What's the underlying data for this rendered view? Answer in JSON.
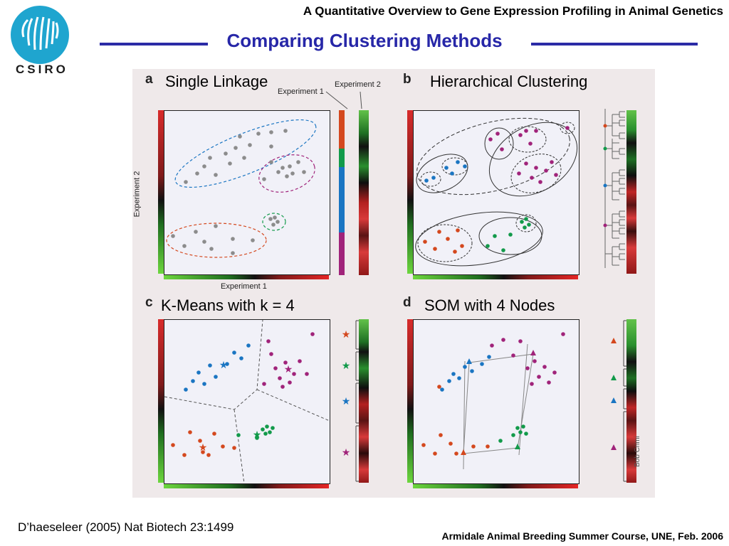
{
  "header": {
    "course_title": "A Quantitative Overview to Gene Expression Profiling in Animal Genetics",
    "slide_title": "Comparing Clustering Methods",
    "logo_text": "CSIRO"
  },
  "figure": {
    "panels": [
      {
        "letter": "a",
        "title": "Single Linkage"
      },
      {
        "letter": "b",
        "title": "Hierarchical Clustering"
      },
      {
        "letter": "c",
        "title": "K-Means with k = 4"
      },
      {
        "letter": "d",
        "title": "SOM with 4 Nodes"
      }
    ],
    "axis_x_label": "Experiment 1",
    "axis_y_label": "Experiment 2",
    "heatmap_label_1": "Experiment 1",
    "heatmap_label_2": "Experiment 2",
    "credit": "Bob Crimi"
  },
  "colors": {
    "title_blue": "#2727a8",
    "cluster_blue": "#1a75c2",
    "cluster_magenta": "#a0237a",
    "cluster_green": "#129a4a",
    "cluster_orange": "#d4481e",
    "points_gray": "#8c8c8c",
    "figure_bg": "#efe9ea",
    "logo_cyan": "#1fa5cf"
  },
  "footer": {
    "citation": "D’haeseleer (2005) Nat Biotech 23:1499",
    "course": "Armidale Animal Breeding Summer Course, UNE, Feb. 2006"
  }
}
